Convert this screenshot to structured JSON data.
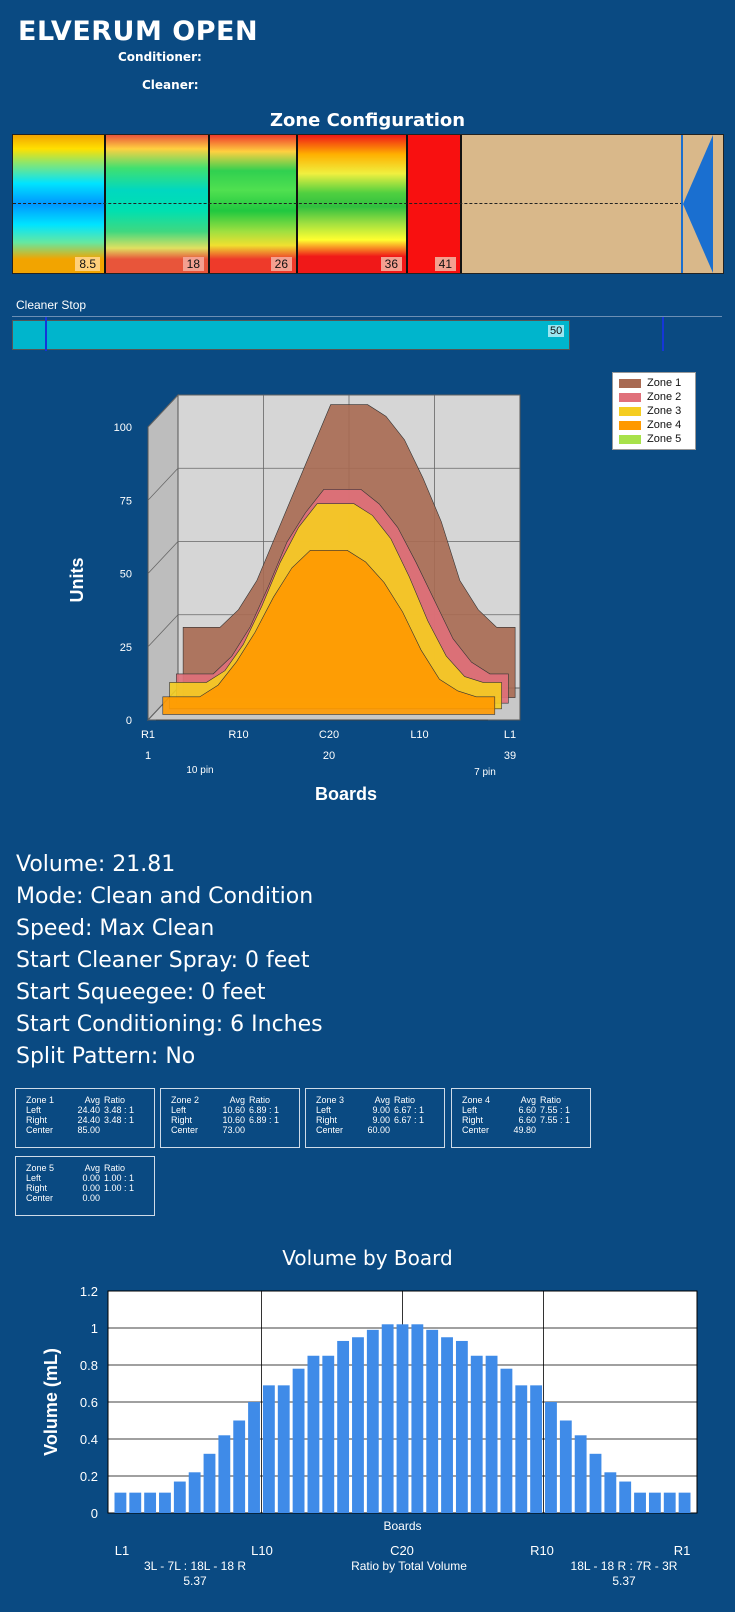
{
  "header": {
    "title": "ELVERUM OPEN",
    "conditioner_label": "Conditioner:",
    "cleaner_label": "Cleaner:"
  },
  "zone_config": {
    "title": "Zone Configuration",
    "zones": [
      {
        "label": "8.5",
        "end": 8.5
      },
      {
        "label": "18",
        "end": 18
      },
      {
        "label": "26",
        "end": 26
      },
      {
        "label": "36",
        "end": 36
      },
      {
        "label": "41",
        "end": 41
      }
    ],
    "lane_length_feet": 60
  },
  "cleaner_stop": {
    "label": "Cleaner Stop",
    "value": "50",
    "value_num": 50
  },
  "chart_data": [
    {
      "type": "area",
      "ylabel": "Units",
      "xlabel": "Boards",
      "ylim": [
        0,
        100
      ],
      "yticks": [
        "0",
        "25",
        "50",
        "75",
        "100"
      ],
      "xticks_top": [
        "R1",
        "R10",
        "C20",
        "L10",
        "L1"
      ],
      "xticks_bottom": [
        "1",
        "20",
        "39"
      ],
      "annotations": [
        "10 pin",
        "7 pin"
      ],
      "legend": [
        "Zone 1",
        "Zone 2",
        "Zone 3",
        "Zone 4",
        "Zone 5"
      ],
      "legend_position": "top-right",
      "colors": [
        "#a86a52",
        "#e0707a",
        "#f5cd20",
        "#ff9900",
        "#a8e24a"
      ],
      "series": [
        {
          "name": "Zone 1",
          "values": [
            24,
            24,
            24,
            30,
            40,
            55,
            70,
            85,
            100,
            100,
            100,
            96,
            88,
            75,
            60,
            40,
            30,
            24,
            24
          ]
        },
        {
          "name": "Zone 2",
          "values": [
            10,
            10,
            10,
            16,
            26,
            40,
            55,
            65,
            73,
            73,
            73,
            68,
            60,
            48,
            35,
            22,
            14,
            10,
            10
          ]
        },
        {
          "name": "Zone 3",
          "values": [
            9,
            9,
            9,
            13,
            22,
            35,
            50,
            62,
            70,
            70,
            70,
            66,
            58,
            45,
            30,
            18,
            11,
            9,
            9
          ]
        },
        {
          "name": "Zone 4",
          "values": [
            6,
            6,
            6,
            10,
            18,
            28,
            40,
            50,
            56,
            56,
            56,
            52,
            45,
            35,
            22,
            12,
            8,
            6,
            6
          ]
        },
        {
          "name": "Zone 5",
          "values": [
            0,
            0,
            0,
            0,
            0,
            0,
            0,
            0,
            0,
            0,
            0,
            0,
            0,
            0,
            0,
            0,
            0,
            0,
            0
          ]
        }
      ]
    },
    {
      "type": "bar",
      "title": "Volume by Board",
      "xlabel": "Boards",
      "ylabel": "Volume (mL)",
      "ylim": [
        0,
        1.2
      ],
      "yticks": [
        "0",
        "0.2",
        "0.4",
        "0.6",
        "0.8",
        "1",
        "1.2"
      ],
      "xticks": [
        "L1",
        "L10",
        "C20",
        "R10",
        "R1"
      ],
      "values": [
        0.11,
        0.11,
        0.11,
        0.11,
        0.17,
        0.22,
        0.32,
        0.42,
        0.5,
        0.6,
        0.69,
        0.69,
        0.78,
        0.85,
        0.85,
        0.93,
        0.95,
        0.99,
        1.02,
        1.02,
        1.02,
        0.99,
        0.95,
        0.93,
        0.85,
        0.85,
        0.78,
        0.69,
        0.69,
        0.6,
        0.5,
        0.42,
        0.32,
        0.22,
        0.17,
        0.11,
        0.11,
        0.11,
        0.11
      ],
      "grid": true
    }
  ],
  "stats": {
    "volume": "Volume: 21.81",
    "mode": "Mode: Clean and Condition",
    "speed": "Speed: Max Clean",
    "start_cleaner_spray": "Start Cleaner Spray: 0 feet",
    "start_squeegee": "Start Squeegee: 0 feet",
    "start_conditioning": "Start Conditioning: 6 Inches",
    "split_pattern": "Split Pattern: No"
  },
  "zone_tables": [
    {
      "name": "Zone 1",
      "avg_h": "Avg",
      "ratio_h": "Ratio",
      "left": "24.40",
      "left_r": "3.48 : 1",
      "right": "24.40",
      "right_r": "3.48 : 1",
      "center": "85.00"
    },
    {
      "name": "Zone 2",
      "avg_h": "Avg",
      "ratio_h": "Ratio",
      "left": "10.60",
      "left_r": "6.89 : 1",
      "right": "10.60",
      "right_r": "6.89 : 1",
      "center": "73.00"
    },
    {
      "name": "Zone 3",
      "avg_h": "Avg",
      "ratio_h": "Ratio",
      "left": "9.00",
      "left_r": "6.67 : 1",
      "right": "9.00",
      "right_r": "6.67 : 1",
      "center": "60.00"
    },
    {
      "name": "Zone 4",
      "avg_h": "Avg",
      "ratio_h": "Ratio",
      "left": "6.60",
      "left_r": "7.55 : 1",
      "right": "6.60",
      "right_r": "7.55 : 1",
      "center": "49.80"
    },
    {
      "name": "Zone 5",
      "avg_h": "Avg",
      "ratio_h": "Ratio",
      "left": "0.00",
      "left_r": "1.00 : 1",
      "right": "0.00",
      "right_r": "1.00 : 1",
      "center": "0.00"
    }
  ],
  "zone_table_labels": {
    "left": "Left",
    "right": "Right",
    "center": "Center"
  },
  "volume_by_board": {
    "ratio_left": "3L - 7L : 18L - 18 R",
    "ratio_left_val": "5.37",
    "ratio_center": "Ratio by Total Volume",
    "ratio_right": "18L - 18 R : 7R - 3R",
    "ratio_right_val": "5.37"
  }
}
